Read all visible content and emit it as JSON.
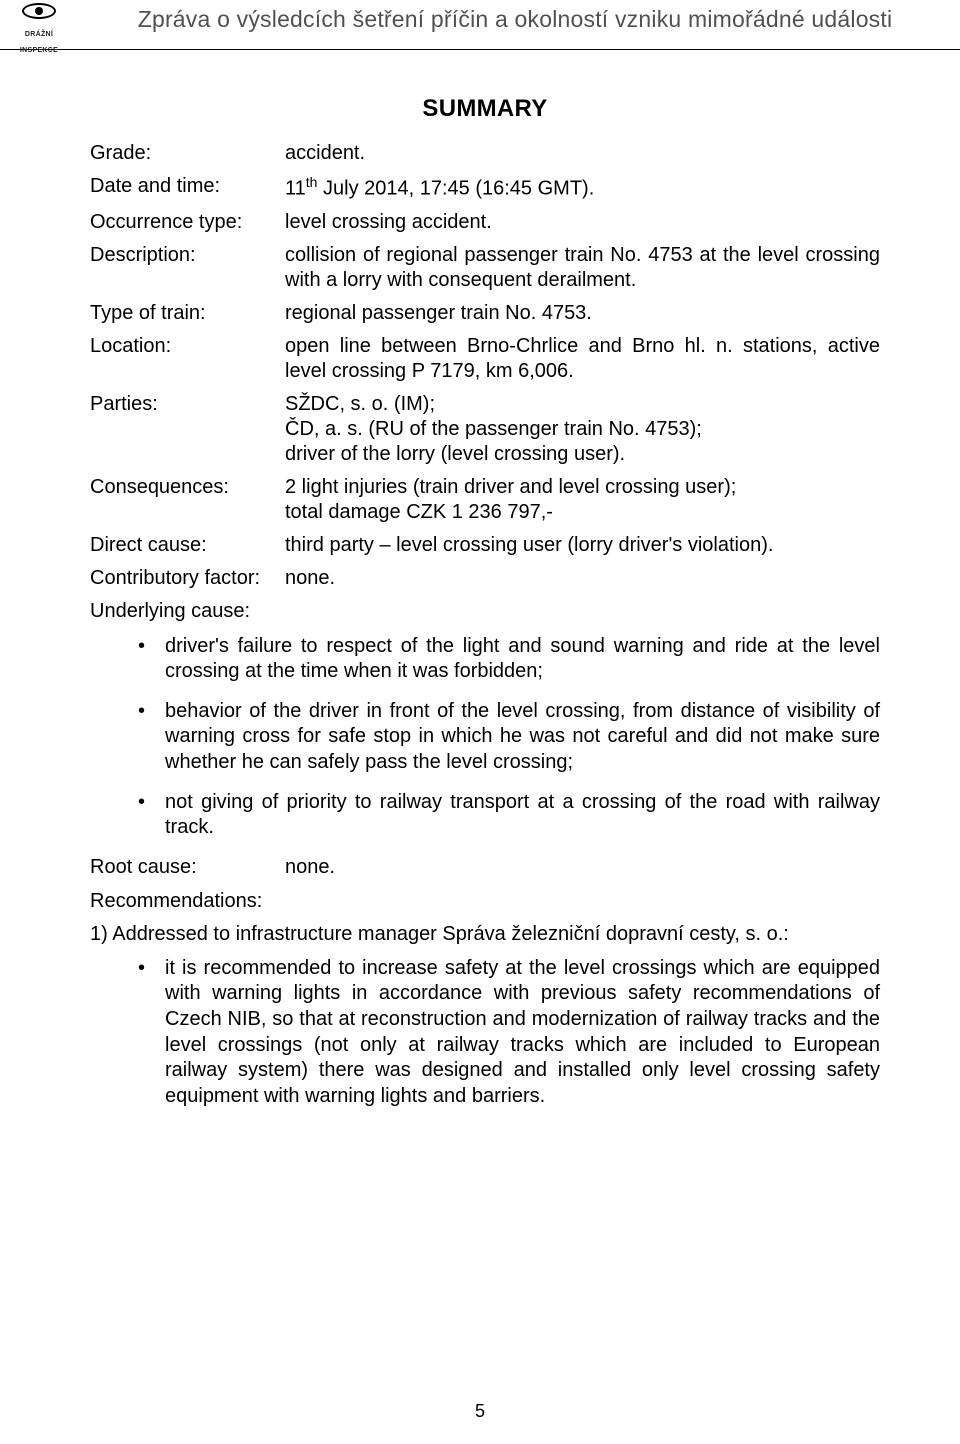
{
  "header": {
    "logo_label1": "DRÁŽNÍ",
    "logo_label2": "INSPEKCE",
    "title": "Zpráva o výsledcích šetření příčin a okolností vzniku mimořádné události"
  },
  "summary_heading": "SUMMARY",
  "rows": {
    "grade": {
      "label": "Grade:",
      "value": "accident."
    },
    "date_time": {
      "label": "Date and time:",
      "prefix": "11",
      "th": "th",
      "suffix": " July 2014, 17:45 (16:45 GMT)."
    },
    "occurrence_type": {
      "label": "Occurrence type:",
      "value": "level crossing accident."
    },
    "description": {
      "label": "Description:",
      "value": "collision of regional passenger train No. 4753 at the level crossing with a lorry with consequent derailment."
    },
    "type_of_train": {
      "label": "Type of train:",
      "value": "regional passenger train No. 4753."
    },
    "location": {
      "label": "Location:",
      "value": "open line between Brno-Chrlice and Brno hl. n. stations, active level crossing P 7179, km 6,006."
    },
    "parties": {
      "label": "Parties:",
      "line1": "SŽDC, s. o. (IM);",
      "line2": "ČD, a. s. (RU of the passenger train No. 4753);",
      "line3": "driver of the lorry (level crossing user)."
    },
    "consequences": {
      "label": "Consequences:",
      "line1": "2 light injuries (train driver and level crossing user);",
      "line2": "total damage CZK 1 236 797,-"
    },
    "direct_cause": {
      "label": "Direct cause:",
      "value": "third party – level crossing user (lorry driver's violation)."
    },
    "contributory": {
      "label": "Contributory factor:",
      "value": "none."
    },
    "underlying_label": "Underlying cause:",
    "root_cause": {
      "label": "Root cause:",
      "value": "none."
    },
    "recommendations_label": "Recommendations:"
  },
  "underlying_bullets": [
    "driver's failure to respect of the light and sound warning and ride at the level crossing at the time when it was forbidden;",
    "behavior of the driver in front of the level crossing, from distance of visibility of warning cross for safe stop in which he was not careful and did not make sure whether he can safely pass the level crossing;",
    "not giving of priority to railway transport at a crossing of the road with railway track."
  ],
  "recommendation_addressed": "1) Addressed to infrastructure manager Správa železniční dopravní cesty, s. o.:",
  "recommendation_bullets": [
    "it is recommended to increase safety at the level crossings which are equipped with warning lights in accordance with previous safety recommendations of Czech NIB, so that at reconstruction and modernization of railway tracks and the level crossings (not only at railway tracks which are included to European railway system) there was designed and installed only level crossing safety equipment with warning lights and barriers."
  ],
  "page_number": "5",
  "colors": {
    "text": "#000000",
    "header_text": "#505050",
    "background": "#ffffff"
  },
  "typography": {
    "body_fontsize_pt": 15,
    "heading_fontsize_pt": 18,
    "font_family": "Arial"
  }
}
